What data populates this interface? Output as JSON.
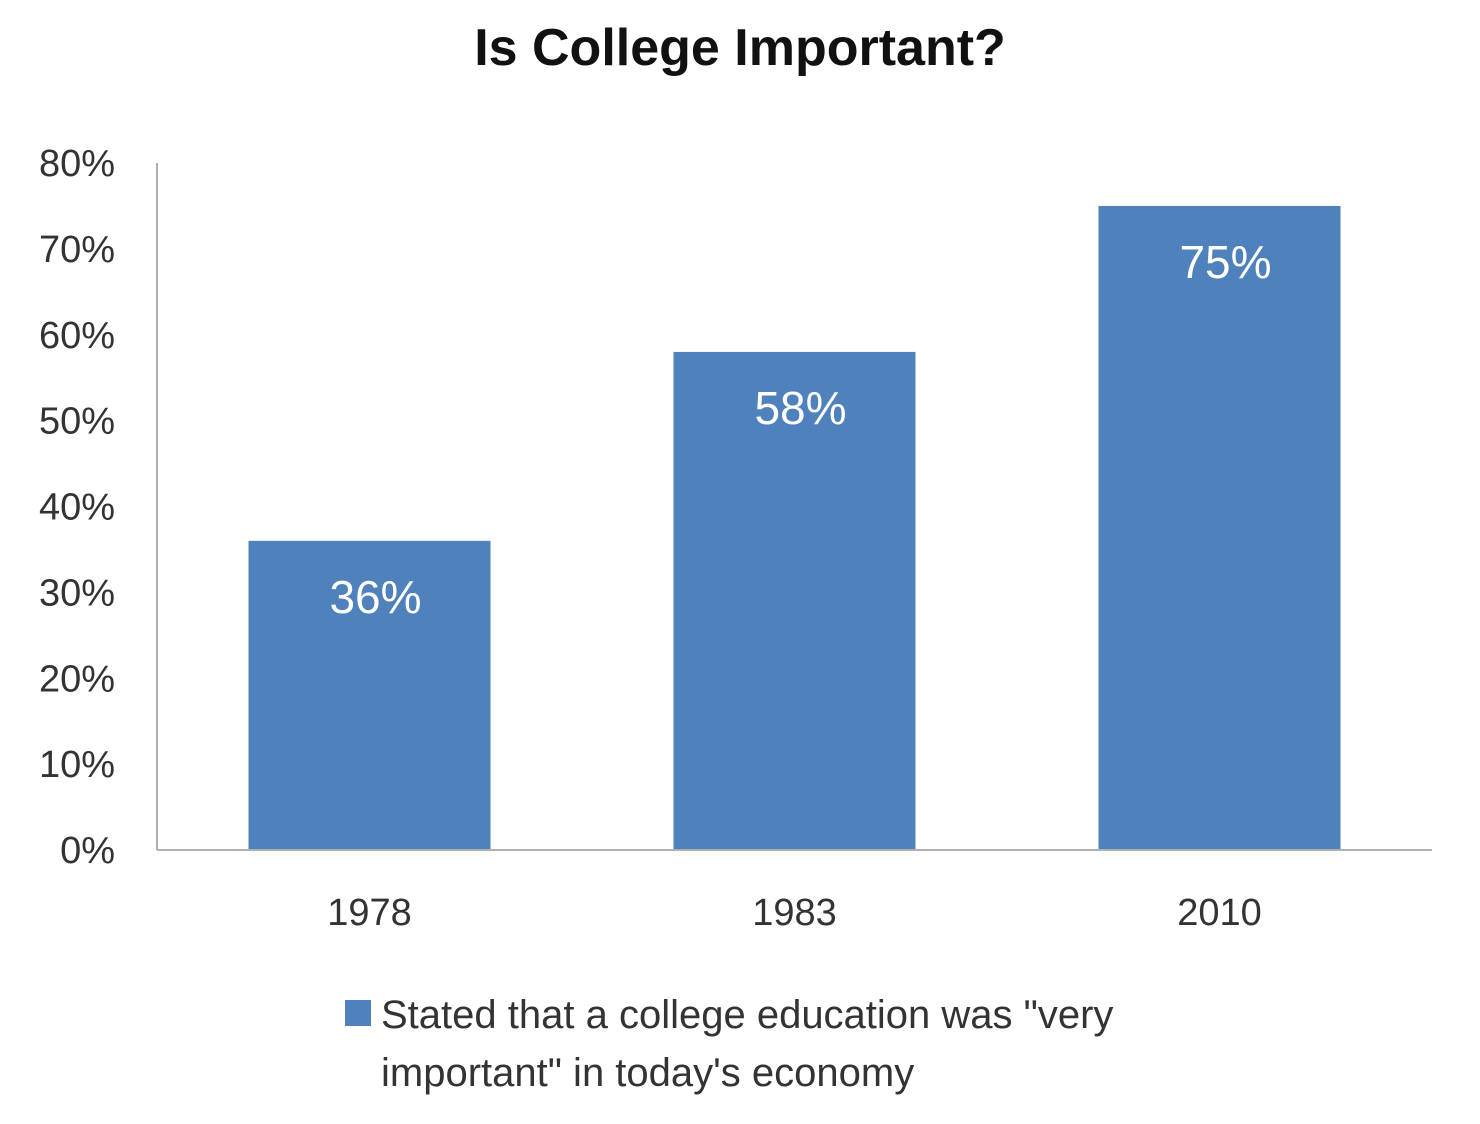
{
  "chart_data": {
    "type": "bar",
    "title": "Is College Important?",
    "categories": [
      "1978",
      "1983",
      "2010"
    ],
    "series": [
      {
        "name": "Stated that a college education was \"very important\" in today's economy",
        "values": [
          36,
          58,
          75
        ],
        "data_labels": [
          "36%",
          "58%",
          "75%"
        ],
        "color": "#4f81bd"
      }
    ],
    "y_ticks": [
      "0%",
      "10%",
      "20%",
      "30%",
      "40%",
      "50%",
      "60%",
      "70%",
      "80%"
    ],
    "ylim": [
      0,
      80
    ],
    "xlabel": "",
    "ylabel": "",
    "grid": false,
    "legend_position": "bottom"
  },
  "colors": {
    "bar": "#4f81bd",
    "axis": "#b0b0b0",
    "data_label": "#ffffff"
  }
}
